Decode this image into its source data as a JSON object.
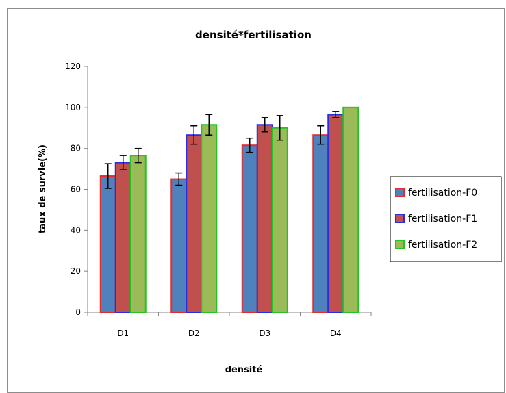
{
  "chart_data": {
    "type": "bar",
    "title": "densité*fertilisation",
    "xlabel": "densité",
    "ylabel": "taux de survie(%)",
    "categories": [
      "D1",
      "D2",
      "D3",
      "D4"
    ],
    "ylim": [
      0,
      120
    ],
    "yticks": [
      0,
      20,
      40,
      60,
      80,
      100,
      120
    ],
    "grid": false,
    "legend_position": "right",
    "series": [
      {
        "name": "fertilisation-F0",
        "values": [
          66.5,
          65,
          81.5,
          86.5
        ],
        "errors": [
          6,
          3,
          3.5,
          4.5
        ],
        "fill": "#4f81bd",
        "stroke": "#e32d2d"
      },
      {
        "name": "fertilisation-F1",
        "values": [
          73,
          86.5,
          91.5,
          96.5
        ],
        "errors": [
          3.5,
          4.5,
          3.5,
          1.5
        ],
        "fill": "#c0504d",
        "stroke": "#2b2be0"
      },
      {
        "name": "fertilisation-F2",
        "values": [
          76.5,
          91.5,
          90,
          100
        ],
        "errors": [
          3.5,
          5,
          6,
          0
        ],
        "fill": "#9bbb59",
        "stroke": "#22c322"
      }
    ]
  }
}
